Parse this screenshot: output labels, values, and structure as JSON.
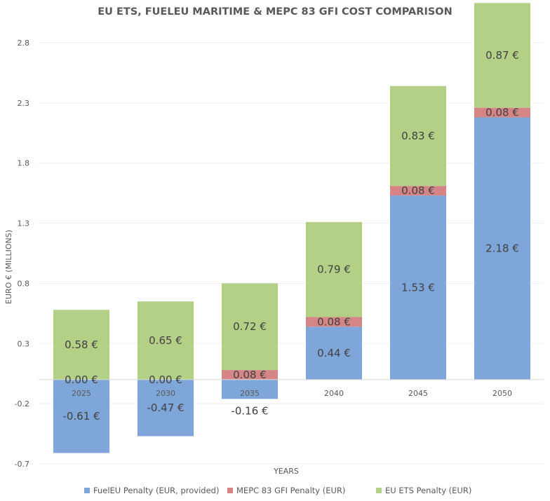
{
  "chart_data": {
    "type": "bar",
    "stacked": true,
    "title": "EU ETS, FUELEU MARITIME & MEPC 83 GFI COST COMPARISON",
    "xlabel": "YEARS",
    "ylabel": "EURO € (MILLIONS)",
    "ylim": [
      -0.7,
      3.1
    ],
    "yticks": [
      -0.7,
      -0.2,
      0.3,
      0.8,
      1.3,
      1.8,
      2.3,
      2.8
    ],
    "ytick_labels": [
      "-0.7",
      "-0.2",
      "0.3",
      "0.8",
      "1.3",
      "1.8",
      "2.3",
      "2.8"
    ],
    "grid": true,
    "legend_position": "bottom",
    "categories": [
      "2025",
      "2030",
      "2035",
      "2040",
      "2045",
      "2050"
    ],
    "series": [
      {
        "name": "FuelEU Penalty (EUR, provided)",
        "color": "#7ea6d8",
        "values": [
          -0.61,
          -0.47,
          -0.16,
          0.44,
          1.53,
          2.18
        ],
        "labels": [
          "-0.61 €",
          "-0.47 €",
          "-0.16 €",
          "0.44 €",
          "1.53 €",
          "2.18 €"
        ]
      },
      {
        "name": "MEPC 83 GFI Penalty (EUR)",
        "color": "#d58586",
        "values": [
          0.0,
          0.0,
          0.08,
          0.08,
          0.08,
          0.08
        ],
        "labels": [
          "0.00 €",
          "0.00 €",
          "0.08 €",
          "0.08 €",
          "0.08 €",
          "0.08 €"
        ]
      },
      {
        "name": "EU ETS Penalty (EUR)",
        "color": "#b4cf86",
        "values": [
          0.58,
          0.65,
          0.72,
          0.79,
          0.83,
          0.87
        ],
        "labels": [
          "0.58 €",
          "0.65 €",
          "0.72 €",
          "0.79 €",
          "0.83 €",
          "0.87 €"
        ]
      }
    ]
  }
}
